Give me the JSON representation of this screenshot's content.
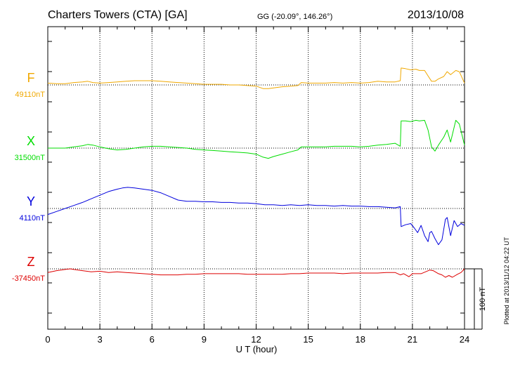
{
  "header": {
    "station": "Charters Towers (CTA)  [GA]",
    "coords": "GG (-20.09°, 146.26°)",
    "date": "2013/10/08"
  },
  "footnote": "Plotted at 2013/11/12 04:22 UT",
  "chart_data": {
    "type": "line",
    "xlabel": "U T (hour)",
    "xlim": [
      0,
      24
    ],
    "xticks": [
      0,
      3,
      6,
      9,
      12,
      15,
      18,
      21,
      24
    ],
    "xtick_labels": [
      "0",
      "3",
      "6",
      "9",
      "12",
      "15",
      "18",
      "21",
      "24"
    ],
    "y_unit": "nT",
    "scale_bar": {
      "label": "100 nT",
      "value": 100
    },
    "grid": true,
    "series": [
      {
        "name": "F",
        "baseline_label": "49110nT",
        "baseline": 49110,
        "color": "#f0a800",
        "x": [
          0,
          0.5,
          1,
          1.5,
          2,
          2.3,
          2.6,
          3,
          3.5,
          4,
          4.5,
          5,
          5.5,
          6,
          6.5,
          7,
          7.5,
          8,
          8.5,
          9,
          9.5,
          10,
          10.5,
          11,
          11.5,
          12,
          12.4,
          12.7,
          13,
          13.5,
          14,
          14.4,
          14.6,
          15,
          15.5,
          16,
          16.5,
          17,
          17.5,
          18,
          18.5,
          19,
          19.5,
          20,
          20.3,
          20.35,
          20.6,
          20.9,
          21.2,
          21.4,
          21.7,
          21.9,
          22.1,
          22.3,
          22.5,
          22.8,
          23.0,
          23.2,
          23.5,
          23.7,
          24
        ],
        "values": [
          3,
          2,
          2,
          4,
          5,
          6,
          4,
          3,
          4,
          5,
          6,
          7,
          7,
          7,
          6,
          5,
          4,
          3,
          2,
          1,
          1,
          1,
          0,
          0,
          -1,
          -2,
          -6,
          -6,
          -5,
          -3,
          -2,
          -1,
          4,
          3,
          3,
          3,
          4,
          3,
          4,
          3,
          4,
          6,
          5,
          5,
          7,
          28,
          27,
          25,
          26,
          24,
          24,
          15,
          6,
          6,
          10,
          14,
          22,
          17,
          24,
          22,
          3
        ]
      },
      {
        "name": "X",
        "baseline_label": "31500nT",
        "baseline": 31500,
        "color": "#00dd00",
        "x": [
          0,
          0.5,
          1,
          1.5,
          2,
          2.3,
          2.6,
          3,
          3.5,
          4,
          4.5,
          5,
          5.5,
          6,
          6.5,
          7,
          7.5,
          8,
          8.5,
          9,
          9.5,
          10,
          10.5,
          11,
          11.5,
          12,
          12.4,
          12.7,
          13,
          13.5,
          14,
          14.4,
          14.6,
          15,
          15.5,
          16,
          16.5,
          17,
          17.5,
          18,
          18.5,
          19,
          19.5,
          20,
          20.3,
          20.35,
          20.6,
          20.9,
          21.2,
          21.4,
          21.7,
          21.9,
          22.1,
          22.3,
          22.5,
          22.8,
          23.0,
          23.2,
          23.5,
          23.7,
          24
        ],
        "values": [
          0,
          0,
          0,
          2,
          4,
          6,
          5,
          2,
          -1,
          -3,
          -2,
          0,
          2,
          3,
          3,
          2,
          1,
          0,
          -2,
          -3,
          -4,
          -5,
          -6,
          -7,
          -8,
          -10,
          -15,
          -17,
          -14,
          -10,
          -6,
          -3,
          2,
          2,
          2,
          2,
          3,
          3,
          3,
          2,
          3,
          5,
          6,
          8,
          3,
          45,
          45,
          44,
          46,
          45,
          46,
          30,
          2,
          -5,
          5,
          18,
          30,
          10,
          46,
          40,
          5
        ]
      },
      {
        "name": "Y",
        "baseline_label": "4110nT",
        "baseline": 4110,
        "color": "#0000dd",
        "x": [
          0,
          0.5,
          1,
          1.5,
          2,
          2.5,
          3,
          3.5,
          4,
          4.3,
          4.6,
          5,
          5.5,
          6,
          6.5,
          7,
          7.5,
          8,
          8.5,
          9,
          9.5,
          10,
          10.5,
          11,
          11.5,
          12,
          12.5,
          13,
          13.5,
          14,
          14.5,
          15,
          15.5,
          16,
          16.5,
          17,
          17.5,
          18,
          18.5,
          19,
          19.5,
          20,
          20.3,
          20.35,
          20.6,
          20.9,
          21.1,
          21.3,
          21.5,
          21.7,
          21.9,
          22.0,
          22.1,
          22.3,
          22.5,
          22.7,
          22.8,
          22.9,
          23.0,
          23.2,
          23.4,
          23.6,
          23.8,
          24
        ],
        "values": [
          -10,
          -5,
          0,
          5,
          10,
          16,
          22,
          28,
          32,
          34,
          35,
          34,
          32,
          30,
          26,
          20,
          14,
          12,
          12,
          11,
          11,
          10,
          10,
          9,
          9,
          8,
          6,
          6,
          5,
          6,
          5,
          6,
          5,
          5,
          4,
          5,
          4,
          4,
          3,
          3,
          2,
          1,
          3,
          -30,
          -27,
          -25,
          -32,
          -40,
          -28,
          -45,
          -55,
          -40,
          -38,
          -50,
          -60,
          -52,
          -35,
          -18,
          -15,
          -45,
          -20,
          -30,
          -25,
          -28
        ]
      },
      {
        "name": "Z",
        "baseline_label": "-37450nT",
        "baseline": -37450,
        "color": "#dd0000",
        "x": [
          0,
          0.5,
          1,
          1.3,
          1.5,
          2,
          2.5,
          3,
          3.5,
          4,
          4.5,
          5,
          5.5,
          6,
          6.5,
          7,
          7.5,
          8,
          8.5,
          9,
          9.5,
          10,
          10.5,
          11,
          11.5,
          12,
          12.5,
          13,
          13.5,
          14,
          14.5,
          15,
          15.5,
          16,
          16.5,
          17,
          17.5,
          18,
          18.5,
          19,
          19.5,
          20,
          20.3,
          20.5,
          20.8,
          21.0,
          21.5,
          22.0,
          22.2,
          22.5,
          22.7,
          22.9,
          23.1,
          23.3,
          23.6,
          23.8,
          24
        ],
        "values": [
          -6,
          -3,
          -1,
          0,
          -1,
          -3,
          -5,
          -4,
          -6,
          -5,
          -6,
          -7,
          -8,
          -9,
          -10,
          -10,
          -10,
          -9,
          -9,
          -8,
          -8,
          -8,
          -8,
          -8,
          -9,
          -9,
          -9,
          -9,
          -9,
          -8,
          -8,
          -7,
          -7,
          -7,
          -7,
          -8,
          -7,
          -7,
          -7,
          -7,
          -6,
          -6,
          -10,
          -8,
          -13,
          -8,
          -8,
          -2,
          -3,
          -8,
          -10,
          -14,
          -11,
          -14,
          -9,
          -6,
          0
        ]
      }
    ]
  }
}
